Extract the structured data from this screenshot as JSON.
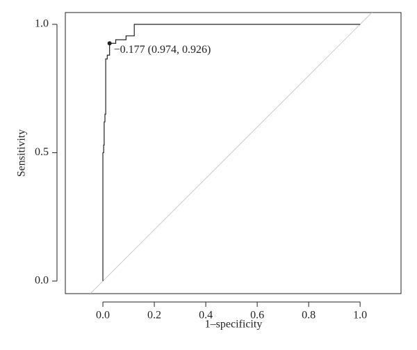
{
  "chart_data": {
    "type": "line",
    "xlabel": "1–specificity",
    "ylabel": "Sensitivity",
    "x": [
      0,
      0,
      0.003,
      0.003,
      0.005,
      0.005,
      0.008,
      0.008,
      0.011,
      0.011,
      0.017,
      0.017,
      0.026,
      0.026,
      0.05,
      0.05,
      0.09,
      0.09,
      0.122,
      0.122,
      1
    ],
    "series": [
      {
        "color": "#222222",
        "values": [
          0,
          0.5,
          0.5,
          0.53,
          0.53,
          0.62,
          0.62,
          0.65,
          0.65,
          0.865,
          0.865,
          0.88,
          0.88,
          0.926,
          0.926,
          0.94,
          0.94,
          0.955,
          0.955,
          1,
          1
        ]
      }
    ],
    "annotation": {
      "text": "−0.177 (0.974, 0.926)",
      "x": 0.026,
      "y": 0.926
    },
    "reference_line_color": "#c8c8c8",
    "xlim": [
      -0.146,
      1.159
    ],
    "ylim": [
      -0.049,
      1.046
    ],
    "xticks": [
      {
        "value": 0,
        "label": "0.0"
      },
      {
        "value": 0.2,
        "label": "0.2"
      },
      {
        "value": 0.4,
        "label": "0.4"
      },
      {
        "value": 0.6,
        "label": "0.6"
      },
      {
        "value": 0.8,
        "label": "0.8"
      },
      {
        "value": 1,
        "label": "1.0"
      }
    ],
    "yticks": [
      {
        "value": 0,
        "label": "0.0"
      },
      {
        "value": 0.5,
        "label": "0.5"
      },
      {
        "value": 1,
        "label": "1.0"
      }
    ]
  }
}
